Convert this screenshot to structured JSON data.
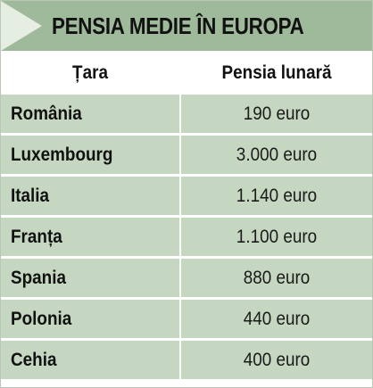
{
  "title": "PENSIA MEDIE ÎN EUROPA",
  "columns": {
    "country": "Țara",
    "pension": "Pensia lunară"
  },
  "rows": [
    {
      "country": "România",
      "pension": "190 euro"
    },
    {
      "country": "Luxembourg",
      "pension": "3.000 euro"
    },
    {
      "country": "Italia",
      "pension": "1.140 euro"
    },
    {
      "country": "Franța",
      "pension": "1.100 euro"
    },
    {
      "country": "Spania",
      "pension": "880 euro"
    },
    {
      "country": "Polonia",
      "pension": "440 euro"
    },
    {
      "country": "Cehia",
      "pension": "400 euro"
    }
  ],
  "colors": {
    "header_band": "#9fba9a",
    "header_arrow": "#e6ede3",
    "row_fill": "#c6d7c1",
    "divider": "#ffffff"
  }
}
